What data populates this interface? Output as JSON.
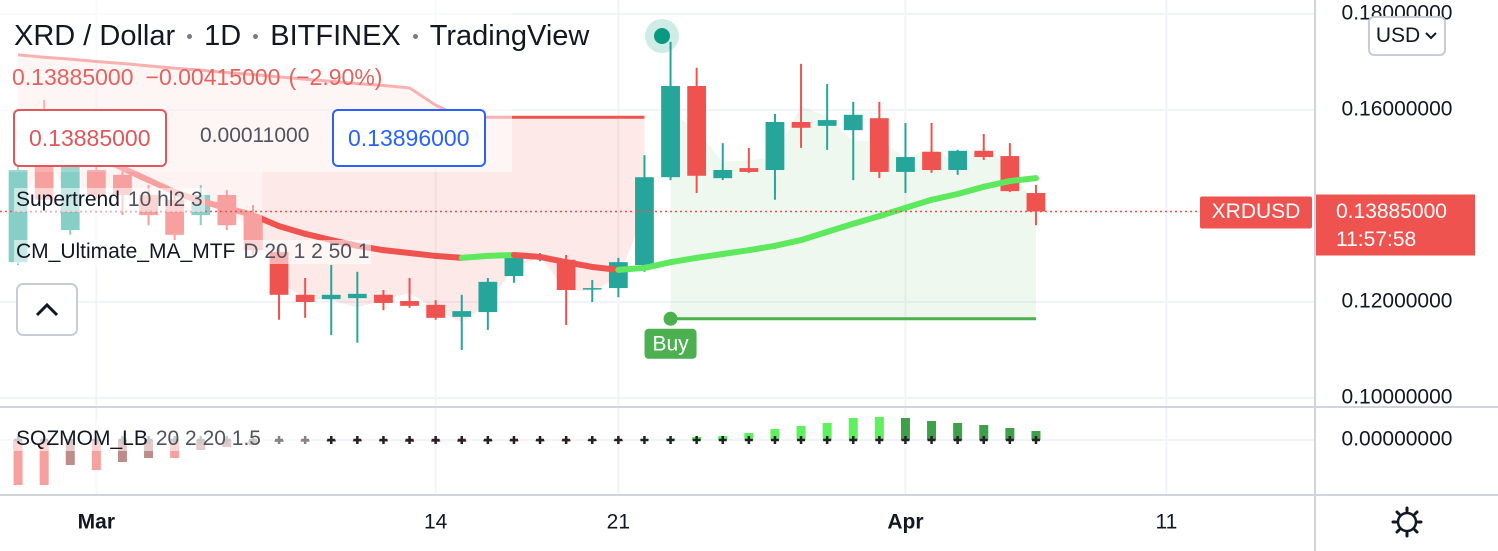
{
  "header": {
    "title": "XRD / Dollar",
    "interval": "1D",
    "exchange": "BITFINEX",
    "source": "TradingView",
    "last": "0.13885000",
    "change": "−0.00415000",
    "change_percent": "(−2.90%)",
    "bid": "0.13885000",
    "spread": "0.00011000",
    "ask": "0.13896000",
    "currency": "USD"
  },
  "chart_data": {
    "type": "candlestick",
    "categories": [
      null,
      null,
      null,
      "Mar",
      null,
      null,
      null,
      null,
      null,
      null,
      null,
      null,
      null,
      null,
      null,
      null,
      "14",
      null,
      null,
      null,
      null,
      null,
      null,
      "21",
      null,
      null,
      null,
      null,
      null,
      null,
      null,
      null,
      null,
      null,
      "Apr",
      null,
      null,
      null,
      null,
      null,
      null,
      null,
      null,
      null,
      "11",
      null,
      null,
      null,
      null,
      null
    ],
    "open": [
      0.1283,
      0.1485,
      0.135,
      0.1475,
      0.1465,
      0.1423,
      0.1413,
      0.1381,
      0.1423,
      0.1381,
      0.1304,
      0.1215,
      0.1206,
      0.1208,
      0.1215,
      0.1202,
      0.1194,
      0.1169,
      0.1179,
      0.1254,
      0.129,
      0.1288,
      0.1227,
      0.1229,
      0.1277,
      0.146,
      0.165,
      0.1458,
      0.1479,
      0.1475,
      0.1575,
      0.1567,
      0.1558,
      0.1583,
      0.1471,
      0.1513,
      0.1475,
      0.1515,
      0.1504,
      0.1427,
      null,
      null,
      null,
      null,
      null,
      null,
      null,
      null,
      null,
      null
    ],
    "high": [
      0.1485,
      0.1621,
      0.1496,
      0.1485,
      0.1475,
      0.1444,
      0.1423,
      0.1444,
      0.1433,
      0.1402,
      0.1319,
      0.125,
      0.1277,
      0.1263,
      0.1225,
      0.125,
      0.1204,
      0.1215,
      0.125,
      0.1304,
      0.1302,
      0.1298,
      0.1246,
      0.1292,
      0.1506,
      0.1742,
      0.1688,
      0.1531,
      0.1521,
      0.1592,
      0.1696,
      0.1654,
      0.1617,
      0.1617,
      0.1573,
      0.1573,
      0.1517,
      0.155,
      0.1531,
      0.1444,
      null,
      null,
      null,
      null,
      null,
      null,
      null,
      null,
      null,
      null
    ],
    "low": [
      0.1277,
      0.1402,
      0.134,
      0.1415,
      0.1381,
      0.136,
      0.1329,
      0.136,
      0.135,
      0.1298,
      0.1163,
      0.1167,
      0.1131,
      0.1115,
      0.1183,
      0.1188,
      0.1163,
      0.11,
      0.1142,
      0.124,
      0.1285,
      0.1152,
      0.12,
      0.121,
      0.1263,
      0.1454,
      0.1427,
      0.1454,
      0.1469,
      0.1413,
      0.1521,
      0.1517,
      0.1454,
      0.1458,
      0.1427,
      0.1469,
      0.1465,
      0.1496,
      0.1429,
      0.136,
      null,
      null,
      null,
      null,
      null,
      null,
      null,
      null,
      null,
      null
    ],
    "close": [
      0.1475,
      0.1413,
      0.1485,
      0.1423,
      0.1423,
      0.1381,
      0.134,
      0.1423,
      0.136,
      0.1308,
      0.1215,
      0.12,
      0.1215,
      0.1217,
      0.1198,
      0.1192,
      0.1167,
      0.1181,
      0.1242,
      0.1298,
      0.1292,
      0.1225,
      0.1229,
      0.1283,
      0.146,
      0.165,
      0.1463,
      0.1475,
      0.1471,
      0.1575,
      0.1563,
      0.1579,
      0.159,
      0.1471,
      0.1502,
      0.1475,
      0.1515,
      0.1502,
      0.1431,
      0.13885,
      null,
      null,
      null,
      null,
      null,
      null,
      null,
      null,
      null,
      null
    ],
    "up_color": "#26a69a",
    "down_color": "#ef5350",
    "ylim": [
      0.09854,
      0.18292
    ],
    "yticks": [
      {
        "value": 0.18,
        "label": "0.18000000"
      },
      {
        "value": 0.16,
        "label": "0.16000000"
      },
      {
        "value": 0.12,
        "label": "0.12000000"
      },
      {
        "value": 0.1,
        "label": "0.10000000"
      }
    ],
    "grid": true,
    "last_price": {
      "value": 0.13885,
      "label": "0.13885000",
      "symbol": "XRDUSD",
      "countdown": "11:57:58",
      "color": "#ef5350"
    },
    "supertrend": {
      "name": "Supertrend",
      "params": "10 hl2 3",
      "signal": "Buy",
      "down_color": "#ef5350",
      "up_color": "#4caf50",
      "down": [
        0.1715,
        0.171,
        0.1706,
        0.1701,
        0.1697,
        0.1692,
        0.1687,
        0.1683,
        0.1678,
        0.1674,
        0.1669,
        0.1664,
        0.166,
        0.1655,
        0.1651,
        0.1646,
        0.161,
        0.1585,
        0.1585,
        0.1585,
        0.1585,
        0.1585,
        0.1585,
        0.1585,
        0.1585,
        null,
        null,
        null,
        null,
        null,
        null,
        null,
        null,
        null,
        null,
        null,
        null,
        null,
        null,
        null,
        null,
        null,
        null,
        null,
        null,
        null,
        null,
        null,
        null,
        null
      ],
      "up": [
        null,
        null,
        null,
        null,
        null,
        null,
        null,
        null,
        null,
        null,
        null,
        null,
        null,
        null,
        null,
        null,
        null,
        null,
        null,
        null,
        null,
        null,
        null,
        null,
        null,
        0.1165,
        0.1165,
        0.1165,
        0.1165,
        0.1165,
        0.1165,
        0.1165,
        0.1165,
        0.1165,
        0.1165,
        0.1165,
        0.1165,
        0.1165,
        0.1165,
        0.1165,
        null,
        null,
        null,
        null,
        null,
        null,
        null,
        null,
        null,
        null
      ]
    },
    "ma": {
      "name": "CM_Ultimate_MA_MTF",
      "params": "D 20 1 2 50 1",
      "rising_color": "#5ee85e",
      "falling_color": "#ef5350",
      "values": [
        0.1569,
        0.1552,
        0.1531,
        0.1506,
        0.1479,
        0.1454,
        0.1429,
        0.141,
        0.1396,
        0.1381,
        0.1358,
        0.1342,
        0.1329,
        0.1317,
        0.1308,
        0.1302,
        0.1296,
        0.1292,
        0.1296,
        0.1298,
        0.1294,
        0.1283,
        0.1273,
        0.1267,
        0.1271,
        0.1283,
        0.1292,
        0.13,
        0.1308,
        0.1317,
        0.1329,
        0.1346,
        0.1363,
        0.1379,
        0.1396,
        0.1413,
        0.1425,
        0.144,
        0.1452,
        0.1458,
        null,
        null,
        null,
        null,
        null,
        null,
        null,
        null,
        null,
        null
      ]
    },
    "momentum": {
      "name": "SQZMOM_LB",
      "params": "20 2 20 1.5",
      "ylim": [
        -0.011,
        0.0064
      ],
      "yticks": [
        {
          "value": 0,
          "label": "0.00000000"
        }
      ],
      "colors": {
        "pos_rising": "#5ef05e",
        "pos_falling": "#3f9f4a",
        "neg_falling": "#ef5350",
        "neg_rising": "#8a2f2f"
      },
      "values": [
        -0.009,
        -0.009,
        -0.005,
        -0.006,
        -0.0044,
        -0.0036,
        -0.0036,
        -0.002,
        -0.0014,
        -0.001,
        -0.0004,
        -0.0004,
        -0.0003,
        -0.0003,
        -0.0003,
        -0.0004,
        -0.0004,
        -0.0004,
        -0.0003,
        -0.0003,
        -0.0003,
        -0.0003,
        -0.0002,
        -0.0001,
        0.0002,
        0.0003,
        0.0006,
        0.0008,
        0.0014,
        0.0022,
        0.0028,
        0.0034,
        0.0044,
        0.0046,
        0.0044,
        0.0038,
        0.0034,
        0.003,
        0.0024,
        0.0018,
        null,
        null,
        null,
        null,
        null,
        null,
        null,
        null,
        null,
        null
      ]
    }
  }
}
